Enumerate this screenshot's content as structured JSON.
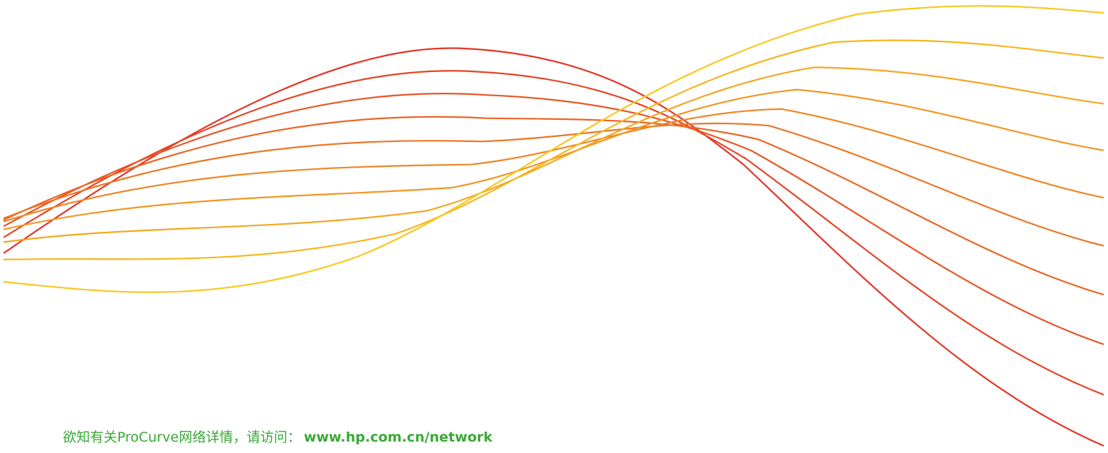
{
  "footer": {
    "text": "欲知有关ProCurve网络详情，请访问：",
    "url": "www.hp.com.cn/network"
  }
}
